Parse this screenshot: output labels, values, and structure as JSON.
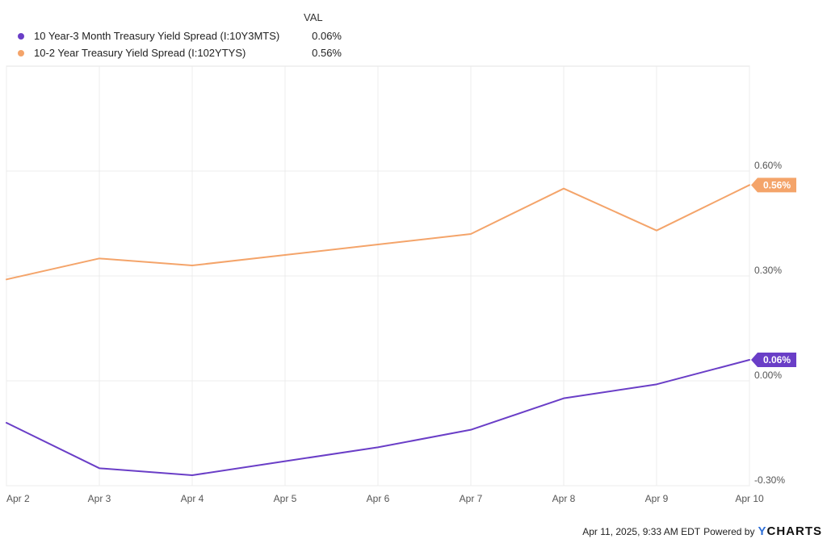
{
  "legend": {
    "header": "VAL",
    "items": [
      {
        "name": "10 Year-3 Month Treasury Yield Spread (I:10Y3MTS)",
        "value": "0.06%",
        "color": "#6a3ec7"
      },
      {
        "name": "10-2 Year Treasury Yield Spread (I:102YTYS)",
        "value": "0.56%",
        "color": "#f4a46a"
      }
    ]
  },
  "footer": {
    "timestamp": "Apr 11, 2025, 9:33 AM EDT",
    "powered_by": "Powered by",
    "logo_y": "Y",
    "logo_rest": "CHARTS"
  },
  "chart_data": {
    "type": "line",
    "title": "",
    "xlabel": "",
    "ylabel": "",
    "categories": [
      "Apr 2",
      "Apr 3",
      "Apr 4",
      "Apr 5",
      "Apr 6",
      "Apr 7",
      "Apr 8",
      "Apr 9",
      "Apr 10"
    ],
    "ylim": [
      -0.3,
      0.9
    ],
    "yticks": [
      -0.3,
      0.0,
      0.3,
      0.6
    ],
    "ytick_labels": [
      "-0.30%",
      "0.00%",
      "0.30%",
      "0.60%"
    ],
    "y_axis_side": "right",
    "grid": true,
    "legend_position": "top-left",
    "series": [
      {
        "name": "10 Year-3 Month Treasury Yield Spread (I:10Y3MTS)",
        "color": "#6a3ec7",
        "values": [
          -0.12,
          -0.25,
          -0.27,
          -0.23,
          -0.19,
          -0.14,
          -0.05,
          -0.01,
          0.06
        ],
        "end_label": "0.06%"
      },
      {
        "name": "10-2 Year Treasury Yield Spread (I:102YTYS)",
        "color": "#f4a46a",
        "values": [
          0.29,
          0.35,
          0.33,
          0.36,
          0.39,
          0.42,
          0.55,
          0.43,
          0.56
        ],
        "end_label": "0.56%"
      }
    ]
  }
}
